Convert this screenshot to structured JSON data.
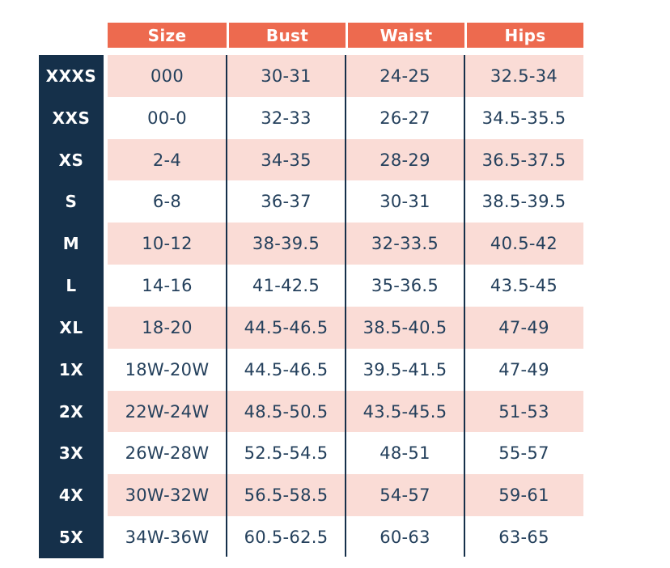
{
  "chart_data": {
    "type": "table",
    "columns": [
      "Size",
      "Bust",
      "Waist",
      "Hips"
    ],
    "rows": [
      {
        "label": "XXXS",
        "values": [
          "000",
          "30-31",
          "24-25",
          "32.5-34"
        ]
      },
      {
        "label": "XXS",
        "values": [
          "00-0",
          "32-33",
          "26-27",
          "34.5-35.5"
        ]
      },
      {
        "label": "XS",
        "values": [
          "2-4",
          "34-35",
          "28-29",
          "36.5-37.5"
        ]
      },
      {
        "label": "S",
        "values": [
          "6-8",
          "36-37",
          "30-31",
          "38.5-39.5"
        ]
      },
      {
        "label": "M",
        "values": [
          "10-12",
          "38-39.5",
          "32-33.5",
          "40.5-42"
        ]
      },
      {
        "label": "L",
        "values": [
          "14-16",
          "41-42.5",
          "35-36.5",
          "43.5-45"
        ]
      },
      {
        "label": "XL",
        "values": [
          "18-20",
          "44.5-46.5",
          "38.5-40.5",
          "47-49"
        ]
      },
      {
        "label": "1X",
        "values": [
          "18W-20W",
          "44.5-46.5",
          "39.5-41.5",
          "47-49"
        ]
      },
      {
        "label": "2X",
        "values": [
          "22W-24W",
          "48.5-50.5",
          "43.5-45.5",
          "51-53"
        ]
      },
      {
        "label": "3X",
        "values": [
          "26W-28W",
          "52.5-54.5",
          "48-51",
          "55-57"
        ]
      },
      {
        "label": "4X",
        "values": [
          "30W-32W",
          "56.5-58.5",
          "54-57",
          "59-61"
        ]
      },
      {
        "label": "5X",
        "values": [
          "34W-36W",
          "60.5-62.5",
          "60-63",
          "63-65"
        ]
      }
    ]
  },
  "colors": {
    "coral": "#ed6a4f",
    "navy": "#15304a",
    "pink": "#fadcd6",
    "text-navy": "#24405c"
  }
}
